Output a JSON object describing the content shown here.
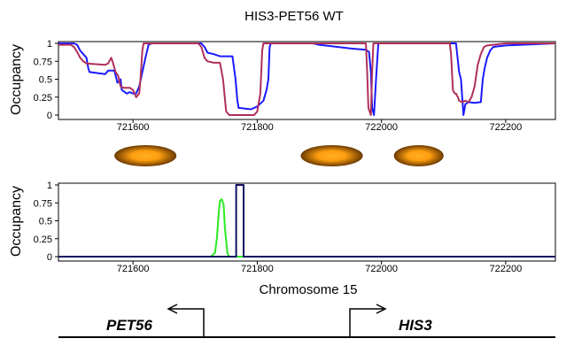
{
  "figure_title": "HIS3-PET56 WT",
  "x_axis_label": "Chromosome 15",
  "colors": {
    "series_blue": "#1a1aff",
    "series_red": "#b0305a",
    "series_green": "#2bea22",
    "series_navy": "#101060",
    "nucleosome_center": "#ff9e0f",
    "nucleosome_edge": "#6a3a00"
  },
  "genes": [
    {
      "name": "PET56",
      "direction": "left",
      "tss": 721750
    },
    {
      "name": "HIS3",
      "direction": "right",
      "tss": 721945
    }
  ],
  "nucleosomes": [
    {
      "center": 721620,
      "width": 100
    },
    {
      "center": 721920,
      "width": 100
    },
    {
      "center": 722060,
      "width": 80
    }
  ],
  "chart_data": [
    {
      "type": "line",
      "title": "HIS3-PET56 WT",
      "ylabel": "Occupancy",
      "xlabel": "",
      "xlim": [
        721480,
        722280
      ],
      "ylim": [
        0,
        1
      ],
      "xticks": [
        721600,
        721800,
        722000,
        722200
      ],
      "xtick_labels": [
        "721600",
        "721800",
        "722000",
        "722200"
      ],
      "yticks": [
        0,
        0.25,
        0.5,
        0.75,
        1
      ],
      "ytick_labels": [
        "0",
        "0.25",
        "0.5",
        "0.75",
        "1"
      ],
      "series": [
        {
          "name": "blue",
          "color": "#1a1aff",
          "points": [
            [
              721480,
              1
            ],
            [
              721505,
              1
            ],
            [
              721510,
              0.98
            ],
            [
              721515,
              0.9
            ],
            [
              721520,
              0.85
            ],
            [
              721525,
              0.8
            ],
            [
              721528,
              0.65
            ],
            [
              721530,
              0.6
            ],
            [
              721555,
              0.57
            ],
            [
              721560,
              0.62
            ],
            [
              721570,
              0.62
            ],
            [
              721575,
              0.45
            ],
            [
              721580,
              0.5
            ],
            [
              721582,
              0.35
            ],
            [
              721590,
              0.3
            ],
            [
              721595,
              0.32
            ],
            [
              721600,
              0.3
            ],
            [
              721605,
              0.3
            ],
            [
              721610,
              0.4
            ],
            [
              721615,
              0.6
            ],
            [
              721620,
              0.8
            ],
            [
              721625,
              0.98
            ],
            [
              721630,
              1
            ],
            [
              721710,
              1
            ],
            [
              721715,
              0.95
            ],
            [
              721720,
              0.87
            ],
            [
              721730,
              0.85
            ],
            [
              721740,
              0.82
            ],
            [
              721760,
              0.82
            ],
            [
              721765,
              0.5
            ],
            [
              721768,
              0.2
            ],
            [
              721770,
              0.1
            ],
            [
              721790,
              0.08
            ],
            [
              721800,
              0.12
            ],
            [
              721810,
              0.2
            ],
            [
              721815,
              0.35
            ],
            [
              721818,
              0.5
            ],
            [
              721820,
              0.95
            ],
            [
              721822,
              1
            ],
            [
              721890,
              1
            ],
            [
              721900,
              0.98
            ],
            [
              721950,
              0.93
            ],
            [
              721975,
              0.91
            ],
            [
              721980,
              0.88
            ],
            [
              721983,
              0.6
            ],
            [
              721985,
              0.1
            ],
            [
              721988,
              0
            ],
            [
              721992,
              0.6
            ],
            [
              721995,
              1
            ],
            [
              722120,
              1
            ],
            [
              722125,
              0.6
            ],
            [
              722128,
              0.5
            ],
            [
              722130,
              0.25
            ],
            [
              722132,
              0
            ],
            [
              722135,
              0.15
            ],
            [
              722140,
              0.18
            ],
            [
              722150,
              0.17
            ],
            [
              722160,
              0.18
            ],
            [
              722163,
              0.5
            ],
            [
              722166,
              0.65
            ],
            [
              722170,
              0.8
            ],
            [
              722175,
              0.9
            ],
            [
              722180,
              0.95
            ],
            [
              722200,
              0.97
            ],
            [
              722280,
              1
            ]
          ]
        },
        {
          "name": "red",
          "color": "#b0305a",
          "points": [
            [
              721480,
              0.98
            ],
            [
              721500,
              0.98
            ],
            [
              721505,
              0.95
            ],
            [
              721510,
              0.88
            ],
            [
              721515,
              0.8
            ],
            [
              721520,
              0.75
            ],
            [
              721525,
              0.72
            ],
            [
              721555,
              0.7
            ],
            [
              721560,
              0.72
            ],
            [
              721565,
              0.8
            ],
            [
              721568,
              0.72
            ],
            [
              721572,
              0.6
            ],
            [
              721576,
              0.55
            ],
            [
              721580,
              0.4
            ],
            [
              721585,
              0.38
            ],
            [
              721595,
              0.38
            ],
            [
              721600,
              0.35
            ],
            [
              721605,
              0.25
            ],
            [
              721610,
              0.3
            ],
            [
              721612,
              0.5
            ],
            [
              721615,
              0.9
            ],
            [
              721617,
              1
            ],
            [
              721705,
              1
            ],
            [
              721710,
              0.95
            ],
            [
              721715,
              0.8
            ],
            [
              721720,
              0.75
            ],
            [
              721730,
              0.73
            ],
            [
              721740,
              0.73
            ],
            [
              721745,
              0.5
            ],
            [
              721750,
              0.05
            ],
            [
              721755,
              0
            ],
            [
              721795,
              0
            ],
            [
              721800,
              0.05
            ],
            [
              721805,
              0.3
            ],
            [
              721808,
              0.9
            ],
            [
              721810,
              1
            ],
            [
              721890,
              1
            ],
            [
              721975,
              1
            ],
            [
              721977,
              0.6
            ],
            [
              721979,
              0.1
            ],
            [
              721983,
              0
            ],
            [
              721985,
              0.6
            ],
            [
              721987,
              1
            ],
            [
              722110,
              1
            ],
            [
              722112,
              0.85
            ],
            [
              722115,
              0.35
            ],
            [
              722118,
              0.3
            ],
            [
              722120,
              0.3
            ],
            [
              722123,
              0.25
            ],
            [
              722125,
              0.2
            ],
            [
              722130,
              0.18
            ],
            [
              722135,
              0.2
            ],
            [
              722140,
              0.18
            ],
            [
              722145,
              0.25
            ],
            [
              722150,
              0.4
            ],
            [
              722155,
              0.7
            ],
            [
              722160,
              0.85
            ],
            [
              722165,
              0.95
            ],
            [
              722170,
              0.97
            ],
            [
              722200,
              1
            ],
            [
              722280,
              1
            ]
          ]
        }
      ]
    },
    {
      "type": "line",
      "title": "",
      "ylabel": "Occupancy",
      "xlabel": "Chromosome 15",
      "xlim": [
        721480,
        722280
      ],
      "ylim": [
        0,
        1
      ],
      "xticks": [
        721600,
        721800,
        722000,
        722200
      ],
      "xtick_labels": [
        "721600",
        "721800",
        "722000",
        "722200"
      ],
      "yticks": [
        0,
        0.25,
        0.5,
        0.75,
        1
      ],
      "ytick_labels": [
        "0",
        "0.25",
        "0.5",
        "0.75",
        "1"
      ],
      "series": [
        {
          "name": "green",
          "color": "#2bea22",
          "points": [
            [
              721480,
              0
            ],
            [
              721725,
              0
            ],
            [
              721732,
              0.05
            ],
            [
              721735,
              0.25
            ],
            [
              721738,
              0.6
            ],
            [
              721740,
              0.78
            ],
            [
              721743,
              0.8
            ],
            [
              721746,
              0.72
            ],
            [
              721748,
              0.4
            ],
            [
              721752,
              0.05
            ],
            [
              721755,
              0
            ],
            [
              722280,
              0
            ]
          ]
        },
        {
          "name": "navy",
          "color": "#101060",
          "points": [
            [
              721480,
              0
            ],
            [
              721766,
              0
            ],
            [
              721766,
              1
            ],
            [
              721778,
              1
            ],
            [
              721778,
              0
            ],
            [
              722280,
              0
            ]
          ]
        }
      ]
    }
  ]
}
